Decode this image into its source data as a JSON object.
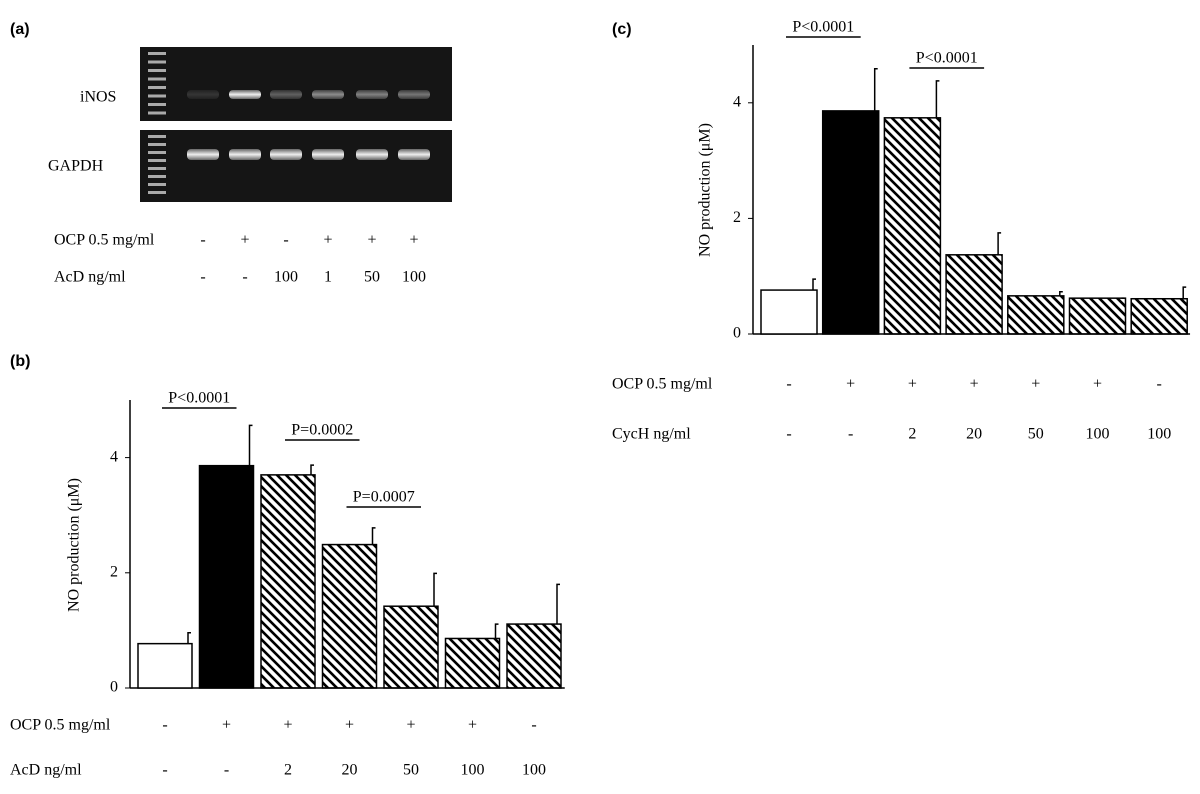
{
  "gel": {
    "panel_label": "(a)",
    "bands": [
      "iNOS",
      "GAPDH"
    ],
    "conditions": [
      {
        "label": "OCP 0.5 mg/ml",
        "values": [
          "-",
          "+",
          "-",
          "+",
          "+",
          "+"
        ]
      },
      {
        "label": "AcD ng/ml",
        "values": [
          "-",
          "-",
          "100",
          "1",
          "50",
          "100"
        ]
      }
    ]
  },
  "chart_data": [
    {
      "type": "bar",
      "panel_label": "(b)",
      "ylabel": "NO production (μM)",
      "values": [
        0.77,
        3.86,
        3.7,
        2.49,
        1.42,
        0.86,
        1.11
      ],
      "errors": [
        0.19,
        0.7,
        0.17,
        0.29,
        0.57,
        0.25,
        0.69
      ],
      "bar_styles": [
        "open",
        "solid",
        "hatched",
        "hatched",
        "hatched",
        "hatched",
        "hatched"
      ],
      "ylim": [
        0,
        5
      ],
      "yticks": [
        0,
        2,
        4
      ],
      "conditions": [
        {
          "label": "OCP 0.5 mg/ml",
          "values": [
            "-",
            "+",
            "+",
            "+",
            "+",
            "+",
            "-"
          ]
        },
        {
          "label": "AcD ng/ml",
          "values": [
            "-",
            "-",
            "2",
            "20",
            "50",
            "100",
            "100"
          ]
        }
      ],
      "annotations": [
        "P<0.0001",
        "P=0.0002",
        "P=0.0007"
      ]
    },
    {
      "type": "bar",
      "panel_label": "(c)",
      "ylabel": "NO production (μM)",
      "values": [
        0.76,
        3.86,
        3.74,
        1.37,
        0.66,
        0.62,
        0.61
      ],
      "errors": [
        0.19,
        0.73,
        0.64,
        0.38,
        0.07,
        0,
        0.2
      ],
      "bar_styles": [
        "open",
        "solid",
        "hatched",
        "hatched",
        "hatched",
        "hatched",
        "hatched"
      ],
      "ylim": [
        0,
        5
      ],
      "yticks": [
        0,
        2,
        4
      ],
      "conditions": [
        {
          "label": "OCP 0.5 mg/ml",
          "values": [
            "-",
            "+",
            "+",
            "+",
            "+",
            "+",
            "-"
          ]
        },
        {
          "label": "CycH ng/ml",
          "values": [
            "-",
            "-",
            "2",
            "20",
            "50",
            "100",
            "100"
          ]
        }
      ],
      "annotations": [
        "P<0.0001",
        "P<0.0001"
      ]
    }
  ]
}
